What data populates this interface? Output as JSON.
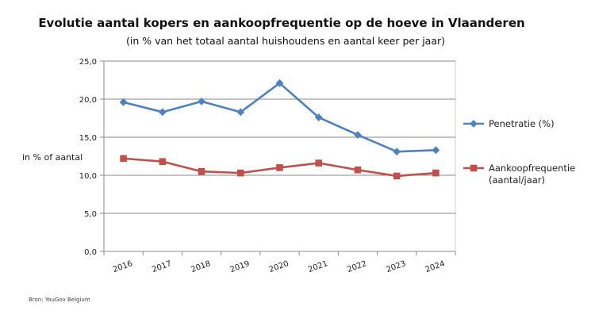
{
  "chart_data": {
    "type": "line",
    "title": "Evolutie aantal kopers en aankoopfrequentie op de hoeve in Vlaanderen",
    "subtitle": "(in % van het totaal aantal huishoudens en aantal keer per jaar)",
    "ylabel": "in % of aantal",
    "xlabel": "",
    "categories": [
      "2016",
      "2017",
      "2018",
      "2019",
      "2020",
      "2021",
      "2022",
      "2023",
      "2024"
    ],
    "ylim": [
      0,
      25
    ],
    "yticks": [
      "0,0",
      "5,0",
      "10,0",
      "15,0",
      "20,0",
      "25,0"
    ],
    "grid": true,
    "legend_position": "right",
    "series": [
      {
        "name": "Penetratie (%)",
        "color": "#4f81bd",
        "marker": "diamond",
        "values": [
          19.6,
          18.3,
          19.7,
          18.3,
          22.1,
          17.6,
          15.3,
          13.1,
          13.3
        ]
      },
      {
        "name_lines": [
          "Aankoopfrequentie",
          "(aantal/jaar)"
        ],
        "color": "#c0504d",
        "marker": "square",
        "values": [
          12.2,
          11.8,
          10.5,
          10.3,
          11.0,
          11.6,
          10.7,
          9.9,
          10.3
        ]
      }
    ]
  },
  "source": "Bron: YouGov Belgium"
}
